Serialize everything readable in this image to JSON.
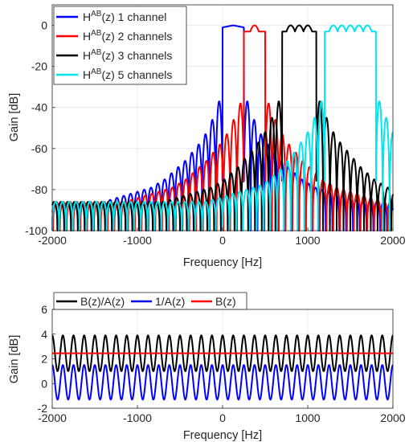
{
  "chart_data": [
    {
      "type": "line",
      "xlabel": "Frequency [Hz]",
      "ylabel": "Gain [dB]",
      "xlim": [
        -2000,
        2000
      ],
      "ylim": [
        -100,
        10
      ],
      "xticks": [
        -2000,
        -1000,
        0,
        1000,
        2000
      ],
      "yticks": [
        0,
        -20,
        -40,
        -60,
        -80,
        -100
      ],
      "grid": true,
      "legend": "top-left",
      "series": [
        {
          "name": "H^AB(z) 1 channel",
          "label_base": "H",
          "label_sup": "AB",
          "label_rest": "(z) 1 channel",
          "color": "#0000ff",
          "passband_hz": [
            0,
            250
          ],
          "ripple_freqs_hz": [],
          "passband_peak_db": 0,
          "sidelobe_peaks_db": [
            -37,
            -46,
            -53,
            -58,
            -62,
            -66,
            -69,
            -72,
            -75,
            -77,
            -79,
            -80,
            -81,
            -82,
            -83,
            -84,
            -85,
            -86
          ],
          "sidelobe_spacing_hz": 80,
          "floor_db": -100
        },
        {
          "name": "H^AB(z) 2 channels",
          "label_base": "H",
          "label_sup": "AB",
          "label_rest": "(z) 2 channels",
          "color": "#ff0000",
          "passband_hz": [
            250,
            500
          ],
          "ripple_freqs_hz": [
            375
          ],
          "passband_peak_db": 0,
          "sidelobe_peaks_db": [
            -38,
            -46,
            -53,
            -58,
            -62,
            -66,
            -69,
            -72,
            -75,
            -77,
            -79,
            -80,
            -81,
            -82,
            -83,
            -84,
            -85,
            -86
          ],
          "sidelobe_spacing_hz": 80,
          "floor_db": -100
        },
        {
          "name": "H^AB(z) 3 channels",
          "label_base": "H",
          "label_sup": "AB",
          "label_rest": "(z) 3 channels",
          "color": "#000000",
          "passband_hz": [
            700,
            1100
          ],
          "ripple_freqs_hz": [
            800,
            900,
            1000
          ],
          "passband_peak_db": 0,
          "sidelobe_peaks_db": [
            -37,
            -45,
            -52,
            -57,
            -61,
            -65,
            -69,
            -72,
            -75,
            -77,
            -79,
            -80,
            -81,
            -82,
            -83,
            -84,
            -85,
            -86
          ],
          "sidelobe_spacing_hz": 80,
          "floor_db": -100
        },
        {
          "name": "H^AB(z) 5 channels",
          "label_base": "H",
          "label_sup": "AB",
          "label_rest": "(z) 5 channels",
          "color": "#00e5ee",
          "passband_hz": [
            1200,
            1800
          ],
          "ripple_freqs_hz": [
            1300,
            1400,
            1500,
            1600,
            1700
          ],
          "passband_peak_db": 0,
          "sidelobe_peaks_db": [
            -37,
            -45,
            -52,
            -57,
            -62,
            -66,
            -70,
            -73,
            -76,
            -78,
            -79,
            -80,
            -81,
            -82,
            -83,
            -84,
            -85,
            -86
          ],
          "sidelobe_spacing_hz": 80,
          "floor_db": -100
        }
      ]
    },
    {
      "type": "line",
      "xlabel": "Frequency [Hz]",
      "ylabel": "Gain [dB]",
      "xlim": [
        -2000,
        2000
      ],
      "ylim": [
        -2,
        6
      ],
      "xticks": [
        -2000,
        -1000,
        0,
        1000,
        2000
      ],
      "yticks": [
        6,
        4,
        2,
        0,
        -2
      ],
      "grid": true,
      "legend": "top",
      "series": [
        {
          "name": "B(z)/A(z)",
          "color": "#000000",
          "kind": "ripple",
          "min_db": 1.0,
          "max_db": 3.9,
          "period_hz": 125
        },
        {
          "name": "1/A(z)",
          "color": "#0000ff",
          "kind": "ripple",
          "min_db": -1.3,
          "max_db": 1.5,
          "period_hz": 125
        },
        {
          "name": "B(z)",
          "color": "#ff0000",
          "kind": "flat",
          "value_db": 2.45
        }
      ]
    }
  ]
}
